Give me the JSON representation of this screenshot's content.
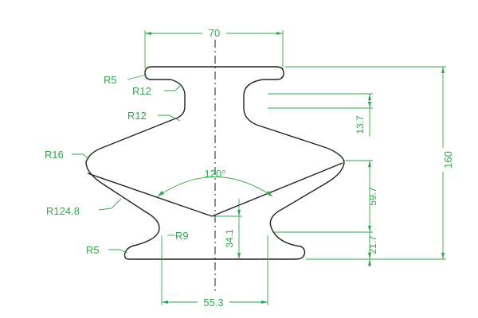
{
  "colors": {
    "outline": "#222222",
    "dimension": "#2ea84a",
    "background": "#ffffff"
  },
  "dimensions": {
    "top_width": "70",
    "total_height": "160",
    "neck_height": "13.7",
    "body_height": "59.7",
    "base_height": "21.7",
    "waist_height": "34.1",
    "base_width": "55.3",
    "angle": "120°"
  },
  "radii": {
    "r5_top": "R5",
    "r12_upper": "R12",
    "r12_lower": "R12",
    "r16": "R16",
    "r124": "R124.8",
    "r9": "R9",
    "r5_bottom": "R5"
  }
}
